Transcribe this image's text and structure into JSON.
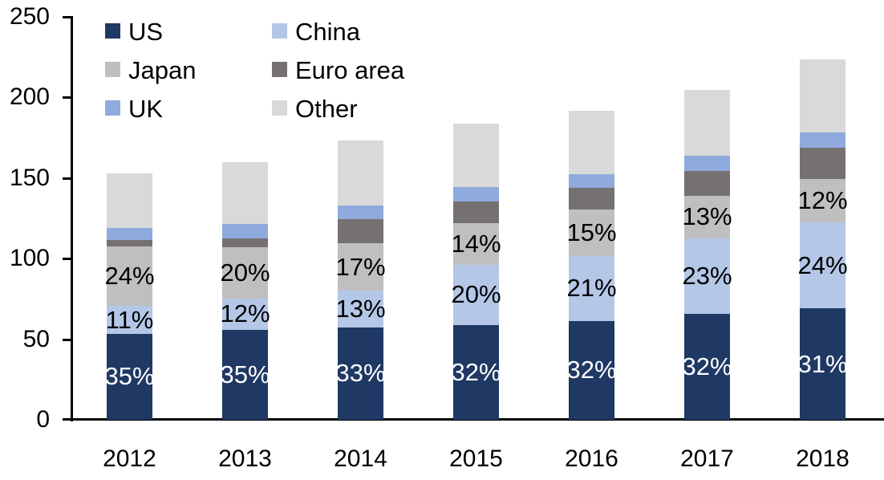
{
  "chart_data": {
    "type": "bar",
    "stacked": true,
    "title": "",
    "xlabel": "",
    "ylabel": "",
    "categories": [
      "2012",
      "2013",
      "2014",
      "2015",
      "2016",
      "2017",
      "2018"
    ],
    "series": [
      {
        "name": "US",
        "color": "#1F3864",
        "values": [
          53.5,
          56,
          57.5,
          59,
          61.5,
          65.5,
          69
        ],
        "labels": [
          "35%",
          "35%",
          "33%",
          "32%",
          "32%",
          "32%",
          "31%"
        ],
        "label_color": "#FFFFFF"
      },
      {
        "name": "China",
        "color": "#B4C7E7",
        "values": [
          17,
          19,
          22.5,
          37,
          40,
          47,
          53.5
        ],
        "labels": [
          "11%",
          "12%",
          "13%",
          "20%",
          "21%",
          "23%",
          "24%"
        ],
        "label_color": "#000000"
      },
      {
        "name": "Japan",
        "color": "#BFBFBF",
        "values": [
          37,
          32,
          29.5,
          26,
          29,
          26.5,
          27
        ],
        "labels": [
          "24%",
          "20%",
          "17%",
          "14%",
          "15%",
          "13%",
          "12%"
        ],
        "label_color": "#000000"
      },
      {
        "name": "Euro area",
        "color": "#767171",
        "values": [
          4,
          5.5,
          15,
          13.5,
          13.5,
          15.5,
          19.5
        ],
        "labels": null,
        "label_color": null
      },
      {
        "name": "UK",
        "color": "#8FAADC",
        "values": [
          7.5,
          9,
          8.5,
          9,
          8.5,
          9.5,
          9.5
        ],
        "labels": null,
        "label_color": null
      },
      {
        "name": "Other",
        "color": "#D9D9D9",
        "values": [
          34,
          38.5,
          40.5,
          39.5,
          39,
          40.5,
          45
        ],
        "labels": null,
        "label_color": null
      }
    ],
    "totals": [
      153,
      160,
      173.5,
      184,
      191.5,
      204.5,
      223.5
    ],
    "ylim": [
      0,
      250
    ],
    "yticks": [
      0,
      50,
      100,
      150,
      200,
      250
    ],
    "grid": false,
    "legend_position": "top-left",
    "legend_rows": [
      [
        "US",
        "China"
      ],
      [
        "Japan",
        "Euro area"
      ],
      [
        "UK",
        "Other"
      ]
    ],
    "axis_color": "#000000",
    "background_color": "#FFFFFF"
  }
}
